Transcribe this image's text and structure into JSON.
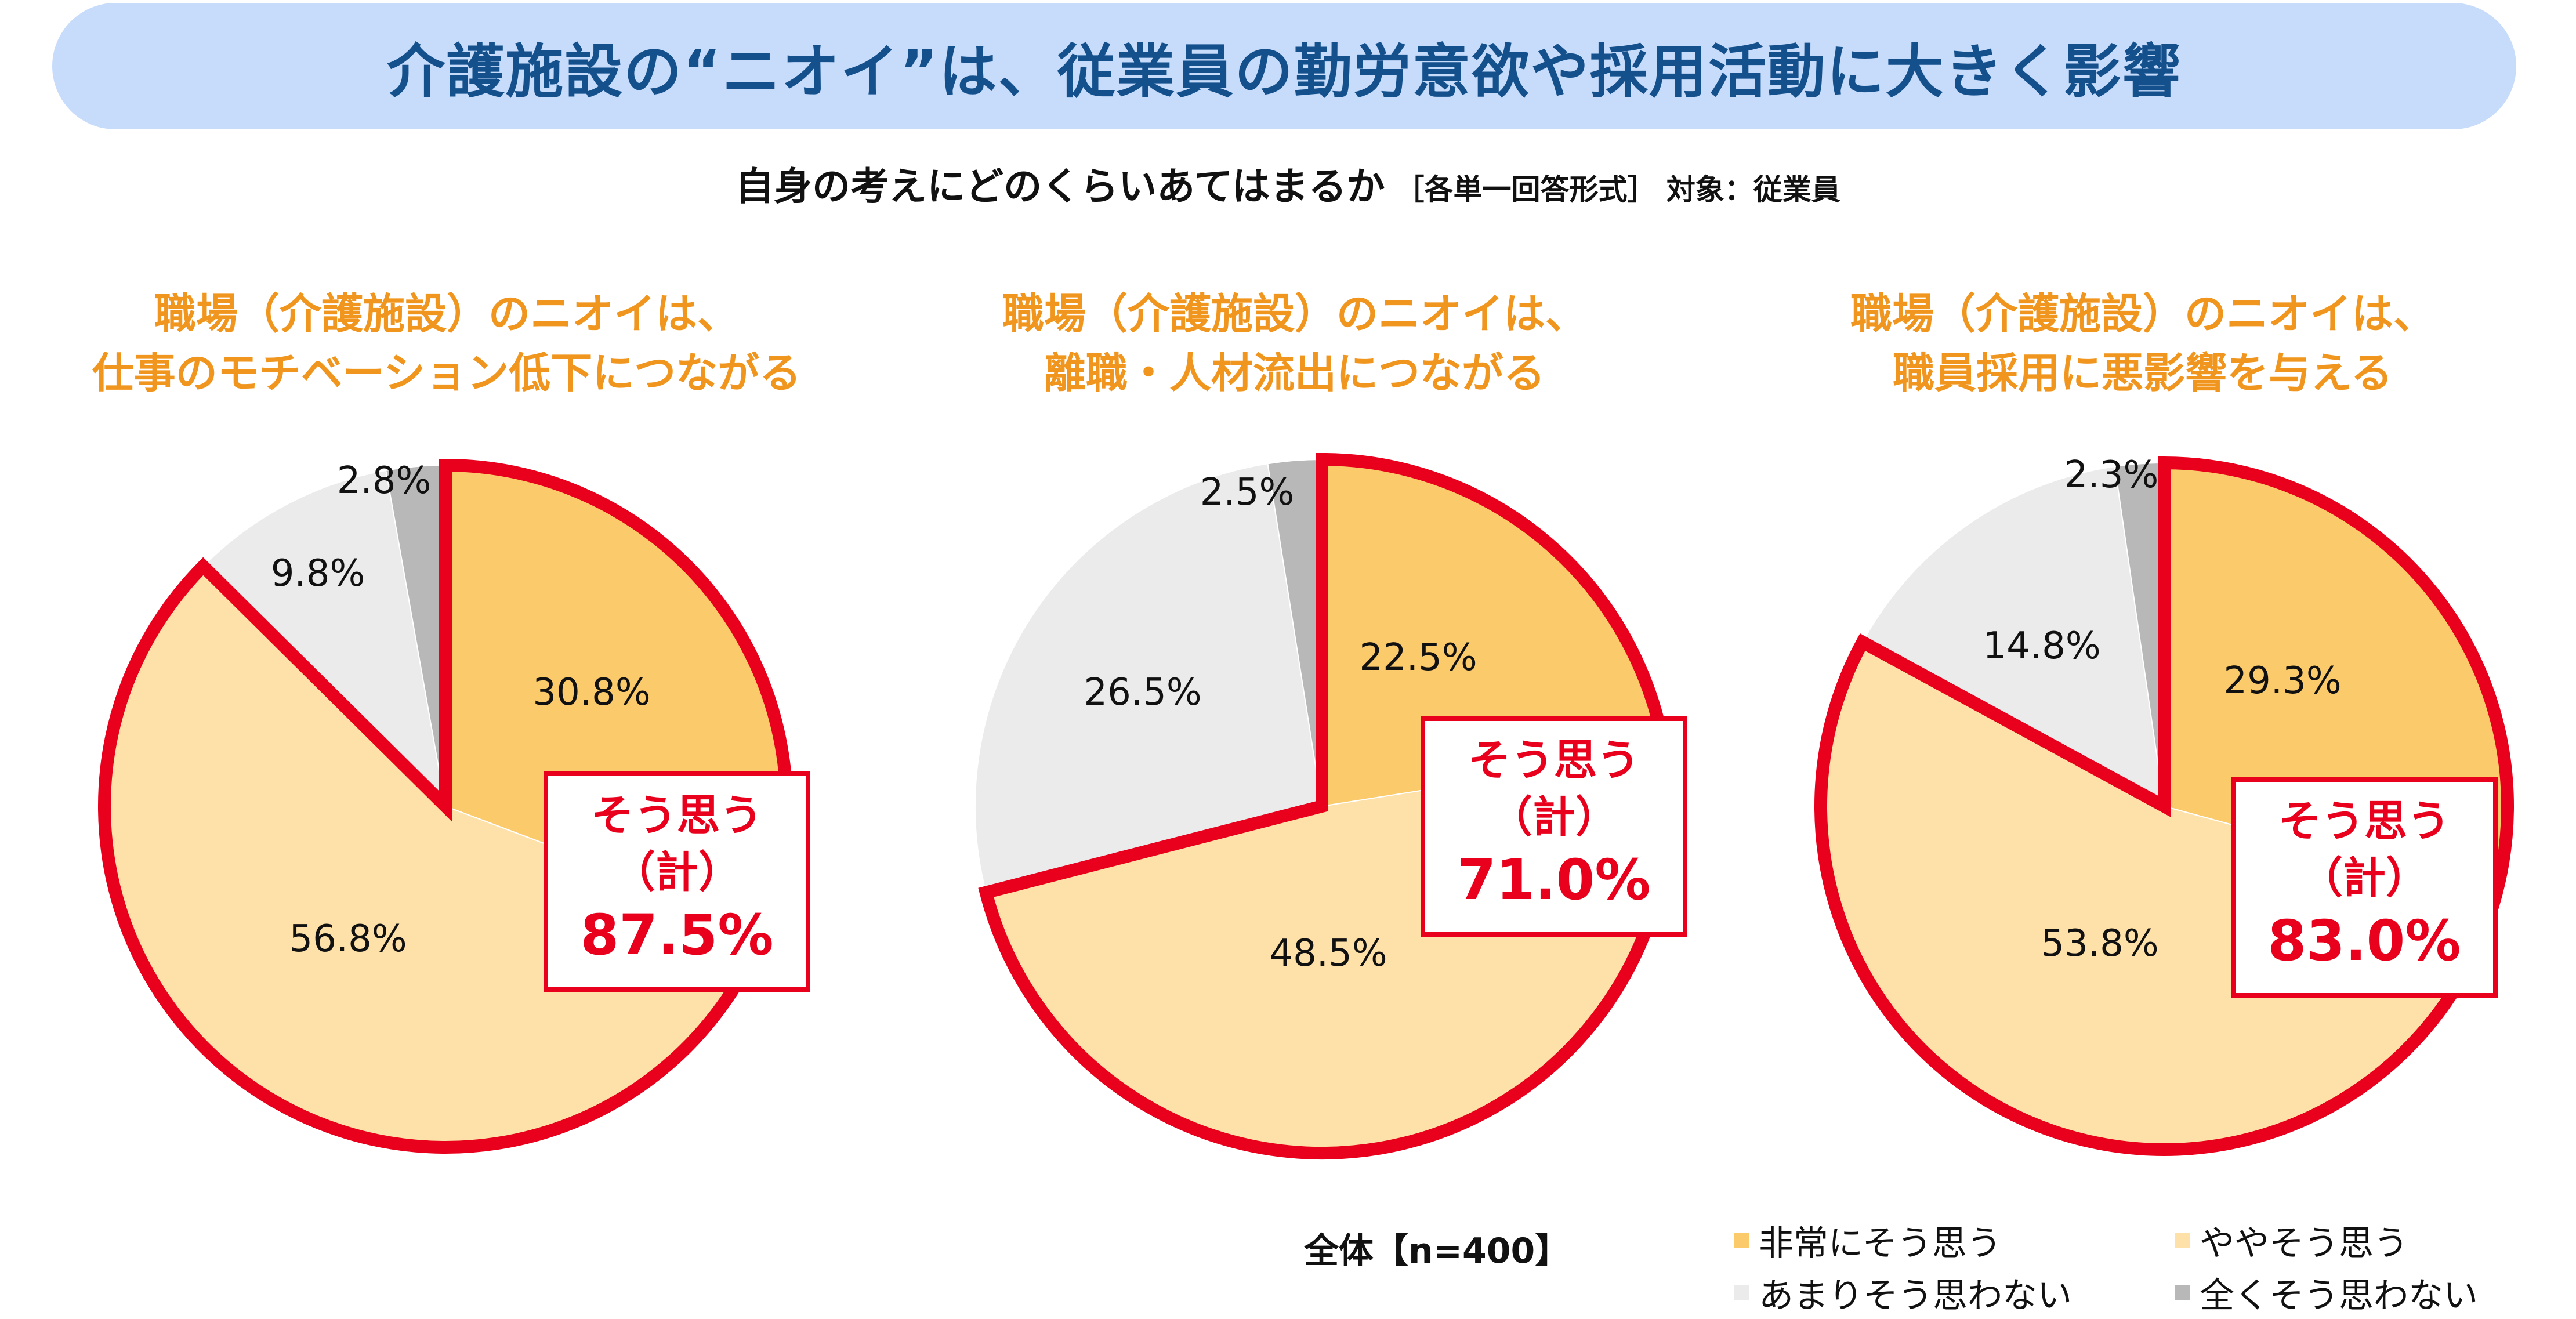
{
  "header": {
    "title": "介護施設の“ニオイ”は、従業員の勤労意欲や採用活動に大きく影響",
    "question": "自身の考えにどのくらいあてはまるか",
    "question_note": "［各単一回答形式］ 対象：従業員"
  },
  "colors": {
    "strongly_agree": "#fbca6b",
    "somewhat_agree": "#fde1a8",
    "not_really": "#ebebeb",
    "not_at_all": "#b8b8b8",
    "highlight": "#e8001c",
    "banner": "#c7dcfb",
    "title": "#14508c",
    "panel_title": "#f0961e"
  },
  "chart_data": [
    {
      "type": "pie",
      "title_lines": [
        "職場（介護施設）のニオイは、",
        "仕事のモチベーション低下につながる"
      ],
      "categories": [
        "非常にそう思う",
        "ややそう思う",
        "あまりそう思わない",
        "全くそう思わない"
      ],
      "values": [
        30.8,
        56.8,
        9.8,
        2.8
      ],
      "value_labels": [
        "30.8%",
        "56.8%",
        "9.8%",
        "2.8%"
      ],
      "callout": {
        "line1": "そう思う",
        "line2": "（計）",
        "value": "87.5%"
      }
    },
    {
      "type": "pie",
      "title_lines": [
        "職場（介護施設）のニオイは、",
        "離職・人材流出につながる"
      ],
      "categories": [
        "非常にそう思う",
        "ややそう思う",
        "あまりそう思わない",
        "全くそう思わない"
      ],
      "values": [
        22.5,
        48.5,
        26.5,
        2.5
      ],
      "value_labels": [
        "22.5%",
        "48.5%",
        "26.5%",
        "2.5%"
      ],
      "callout": {
        "line1": "そう思う",
        "line2": "（計）",
        "value": "71.0%"
      }
    },
    {
      "type": "pie",
      "title_lines": [
        "職場（介護施設）のニオイは、",
        "職員採用に悪影響を与える"
      ],
      "categories": [
        "非常にそう思う",
        "ややそう思う",
        "あまりそう思わない",
        "全くそう思わない"
      ],
      "values": [
        29.3,
        53.8,
        14.8,
        2.3
      ],
      "value_labels": [
        "29.3%",
        "53.8%",
        "14.8%",
        "2.3%"
      ],
      "callout": {
        "line1": "そう思う",
        "line2": "（計）",
        "value": "83.0%"
      }
    }
  ],
  "footer": {
    "total_label": "全体【n=400】",
    "legend": [
      {
        "label": "非常にそう思う",
        "color": "#fbca6b"
      },
      {
        "label": "ややそう思う",
        "color": "#fde1a8"
      },
      {
        "label": "あまりそう思わない",
        "color": "#ebebeb"
      },
      {
        "label": "全くそう思わない",
        "color": "#b8b8b8"
      }
    ]
  }
}
